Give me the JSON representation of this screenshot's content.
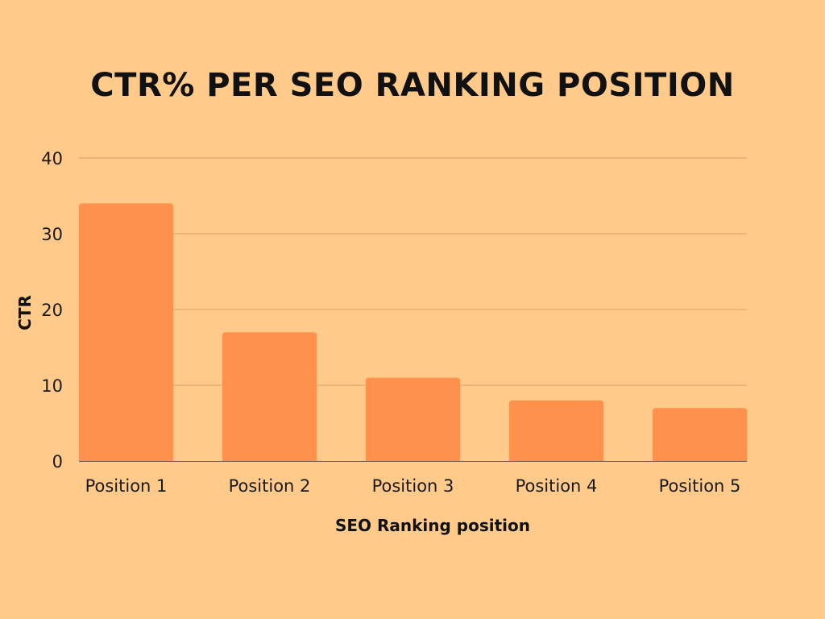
{
  "colors": {
    "background": "#FFCA8A",
    "bar": "#FF914D",
    "grid": "#D9A36B",
    "axis": "#7A5A3A"
  },
  "chart_data": {
    "type": "bar",
    "title": "CTR% PER SEO RANKING POSITION",
    "xlabel": "SEO Ranking position",
    "ylabel": "CTR",
    "categories": [
      "Position 1",
      "Position 2",
      "Position 3",
      "Position 4",
      "Position 5"
    ],
    "values": [
      34,
      17,
      11,
      8,
      7
    ],
    "ylim": [
      0,
      40
    ],
    "yticks": [
      "0",
      "10",
      "20",
      "30",
      "40"
    ],
    "grid": true,
    "legend": "none"
  }
}
